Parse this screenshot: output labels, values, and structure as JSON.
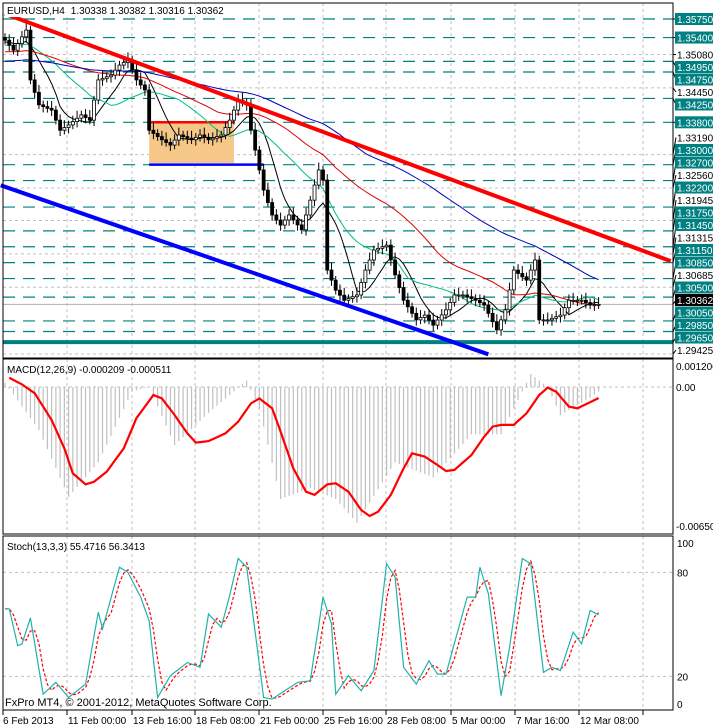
{
  "header": {
    "symbol": "EURUSD,H4",
    "ohlc": "1.30338 1.30382 1.30316 1.30362"
  },
  "footer": {
    "copyright": "FxPro MT4, © 2001-2012, MetaQuotes Software Corp."
  },
  "colors": {
    "level": "#008080",
    "trend_down": "#ff0000",
    "channel": "#0000ff",
    "range_box": "#f5c88a",
    "candle": "#000000",
    "grid": "#c0c0c0"
  },
  "chart_data": [
    {
      "type": "candlestick",
      "title": "EURUSD,H4",
      "x_ticks": [
        "6 Feb 2013",
        "11 Feb 00:00",
        "13 Feb 16:00",
        "18 Feb 08:00",
        "21 Feb 00:00",
        "25 Feb 16:00",
        "28 Feb 08:00",
        "5 Mar 00:00",
        "7 Mar 16:00",
        "12 Mar 08:00"
      ],
      "ylim": [
        1.29425,
        1.3575
      ],
      "y_ticks": [
        "1.35080",
        "1.34450",
        "1.33190",
        "1.32560",
        "1.31945",
        "1.31315",
        "1.30685",
        "1.29425"
      ],
      "levels": [
        "1.35750",
        "1.35400",
        "1.34950",
        "1.34750",
        "1.34250",
        "1.33800",
        "1.33000",
        "1.32700",
        "1.32200",
        "1.31750",
        "1.31450",
        "1.31150",
        "1.30850",
        "1.30500",
        "1.30050",
        "1.29850",
        "1.29650"
      ],
      "strong_level": "1.29650",
      "current_price": "1.30362",
      "close_by_bar": [
        [
          0,
          1.3535
        ],
        [
          2,
          1.3516
        ],
        [
          5,
          1.3554
        ],
        [
          6,
          1.346
        ],
        [
          8,
          1.3413
        ],
        [
          11,
          1.3403
        ],
        [
          13,
          1.3365
        ],
        [
          15,
          1.3375
        ],
        [
          18,
          1.3394
        ],
        [
          20,
          1.3384
        ],
        [
          22,
          1.346
        ],
        [
          25,
          1.3469
        ],
        [
          27,
          1.3488
        ],
        [
          29,
          1.3498
        ],
        [
          31,
          1.346
        ],
        [
          33,
          1.3441
        ],
        [
          34,
          1.3365
        ],
        [
          37,
          1.3347
        ],
        [
          39,
          1.3337
        ],
        [
          41,
          1.3356
        ],
        [
          44,
          1.3347
        ],
        [
          46,
          1.3356
        ],
        [
          48,
          1.3347
        ],
        [
          51,
          1.3356
        ],
        [
          53,
          1.3384
        ],
        [
          55,
          1.3422
        ],
        [
          57,
          1.3413
        ],
        [
          58,
          1.3365
        ],
        [
          60,
          1.329
        ],
        [
          61,
          1.3252
        ],
        [
          63,
          1.3205
        ],
        [
          65,
          1.3186
        ],
        [
          67,
          1.3205
        ],
        [
          70,
          1.3177
        ],
        [
          72,
          1.3233
        ],
        [
          74,
          1.329
        ],
        [
          75,
          1.3271
        ],
        [
          76,
          1.3101
        ],
        [
          78,
          1.3063
        ],
        [
          80,
          1.3044
        ],
        [
          83,
          1.3054
        ],
        [
          85,
          1.3101
        ],
        [
          87,
          1.3139
        ],
        [
          90,
          1.3148
        ],
        [
          92,
          1.3092
        ],
        [
          94,
          1.3044
        ],
        [
          97,
          1.3007
        ],
        [
          99,
          1.3016
        ],
        [
          101,
          1.2997
        ],
        [
          104,
          1.3026
        ],
        [
          106,
          1.3054
        ],
        [
          108,
          1.3054
        ],
        [
          111,
          1.3044
        ],
        [
          113,
          1.3035
        ],
        [
          116,
          1.2988
        ],
        [
          118,
          1.3026
        ],
        [
          120,
          1.3101
        ],
        [
          123,
          1.3082
        ],
        [
          125,
          1.312
        ],
        [
          126,
          1.3007
        ],
        [
          128,
          1.3007
        ],
        [
          131,
          1.3016
        ],
        [
          133,
          1.3044
        ],
        [
          136,
          1.3044
        ],
        [
          138,
          1.3035
        ],
        [
          140,
          1.30362
        ]
      ],
      "trendlines": [
        {
          "color": "red",
          "from": [
            0,
            1.3585
          ],
          "to": [
            157,
            1.3118
          ]
        },
        {
          "color": "blue",
          "from": [
            -1,
            1.3261
          ],
          "to": [
            114,
            1.2942
          ]
        }
      ],
      "range_box": {
        "from_bar": 34,
        "to_bar": 54,
        "top": 1.338,
        "bottom": 1.3303
      },
      "range_lines": [
        {
          "color": "red",
          "from_bar": 34,
          "to_bar": 54,
          "price": 1.338
        },
        {
          "color": "blue",
          "from_bar": 34,
          "to_bar": 61,
          "price": 1.33
        }
      ],
      "moving_averages": [
        {
          "color": "#000000",
          "period": 8
        },
        {
          "color": "#00c080",
          "period": 20
        },
        {
          "color": "#e00000",
          "period": 45
        },
        {
          "color": "#0000c0",
          "period": 80
        }
      ]
    },
    {
      "type": "bar+line",
      "title": "MACD(12,26,9) -0.000209 -0.000511",
      "ylim": [
        -0.0065,
        0.001206
      ],
      "y_ticks": [
        "0.001206",
        "0.00",
        "-0.00650"
      ],
      "histogram_by_bar": [
        [
          0,
          0.0002
        ],
        [
          8,
          -0.002
        ],
        [
          15,
          -0.0051
        ],
        [
          22,
          -0.0035
        ],
        [
          30,
          -0.0002
        ],
        [
          34,
          0.0
        ],
        [
          40,
          -0.0027
        ],
        [
          48,
          -0.0012
        ],
        [
          57,
          0.0003
        ],
        [
          60,
          -0.001
        ],
        [
          65,
          -0.0052
        ],
        [
          72,
          -0.0047
        ],
        [
          78,
          -0.0052
        ],
        [
          83,
          -0.0063
        ],
        [
          92,
          -0.0035
        ],
        [
          101,
          -0.0042
        ],
        [
          110,
          -0.0022
        ],
        [
          117,
          -0.0022
        ],
        [
          124,
          0.0006
        ],
        [
          128,
          0.0
        ],
        [
          131,
          -0.0013
        ],
        [
          138,
          -0.0005
        ],
        [
          140,
          -0.000209
        ]
      ],
      "signal_by_bar": [
        [
          1,
          0.00043
        ],
        [
          4,
          0.00012
        ],
        [
          7,
          -0.00029
        ],
        [
          11,
          -0.00153
        ],
        [
          14,
          -0.00285
        ],
        [
          16,
          -0.00401
        ],
        [
          19,
          -0.00452
        ],
        [
          21,
          -0.0044
        ],
        [
          24,
          -0.00393
        ],
        [
          28,
          -0.00285
        ],
        [
          31,
          -0.00145
        ],
        [
          35,
          -0.00037
        ],
        [
          37,
          -0.00053
        ],
        [
          40,
          -0.0013
        ],
        [
          43,
          -0.00215
        ],
        [
          45,
          -0.00258
        ],
        [
          48,
          -0.00251
        ],
        [
          52,
          -0.00215
        ],
        [
          55,
          -0.00161
        ],
        [
          58,
          -0.00076
        ],
        [
          60,
          -0.00053
        ],
        [
          63,
          -0.00099
        ],
        [
          65,
          -0.00207
        ],
        [
          68,
          -0.00378
        ],
        [
          71,
          -0.00486
        ],
        [
          73,
          -0.00501
        ],
        [
          76,
          -0.00452
        ],
        [
          78,
          -0.00447
        ],
        [
          81,
          -0.00486
        ],
        [
          84,
          -0.00571
        ],
        [
          86,
          -0.00599
        ],
        [
          88,
          -0.00579
        ],
        [
          91,
          -0.00501
        ],
        [
          94,
          -0.00378
        ],
        [
          96,
          -0.00308
        ],
        [
          99,
          -0.00323
        ],
        [
          102,
          -0.00362
        ],
        [
          104,
          -0.0039
        ],
        [
          106,
          -0.00385
        ],
        [
          110,
          -0.00316
        ],
        [
          113,
          -0.00231
        ],
        [
          115,
          -0.00184
        ],
        [
          117,
          -0.00176
        ],
        [
          120,
          -0.00176
        ],
        [
          123,
          -0.00122
        ],
        [
          126,
          -0.00037
        ],
        [
          128,
          -3e-05
        ],
        [
          130,
          -0.00022
        ],
        [
          133,
          -0.00091
        ],
        [
          135,
          -0.00099
        ],
        [
          137,
          -0.0008
        ],
        [
          140,
          -0.000511
        ]
      ]
    },
    {
      "type": "line",
      "title": "Stoch(13,3,3) 55.4716 56.3413",
      "ylim": [
        0,
        100
      ],
      "y_ticks": [
        "100",
        "80",
        "20",
        "0"
      ],
      "main_by_bar": [
        [
          1,
          59
        ],
        [
          3,
          37.7
        ],
        [
          4,
          38.7
        ],
        [
          6,
          53.7
        ],
        [
          9,
          9.7
        ],
        [
          12,
          16.5
        ],
        [
          15,
          7.8
        ],
        [
          19,
          15.5
        ],
        [
          22,
          57
        ],
        [
          23,
          47.4
        ],
        [
          27,
          83
        ],
        [
          29,
          80
        ],
        [
          32,
          65.7
        ],
        [
          34,
          52
        ],
        [
          36,
          7.8
        ],
        [
          39,
          20.4
        ],
        [
          43,
          28
        ],
        [
          46,
          25.2
        ],
        [
          48,
          56
        ],
        [
          51,
          48.3
        ],
        [
          53,
          66.7
        ],
        [
          55,
          88
        ],
        [
          57,
          83
        ],
        [
          61,
          7.8
        ],
        [
          63,
          6.9
        ],
        [
          66,
          11.7
        ],
        [
          69,
          16.5
        ],
        [
          72,
          17.5
        ],
        [
          75,
          65.7
        ],
        [
          77,
          50.3
        ],
        [
          78,
          9.7
        ],
        [
          81,
          20.4
        ],
        [
          84,
          11.7
        ],
        [
          87,
          23.3
        ],
        [
          90,
          85
        ],
        [
          92,
          77.3
        ],
        [
          94,
          25.2
        ],
        [
          97,
          15.5
        ],
        [
          100,
          29
        ],
        [
          102,
          21.3
        ],
        [
          104,
          21.3
        ],
        [
          109,
          65.7
        ],
        [
          111,
          65.7
        ],
        [
          112,
          83
        ],
        [
          114,
          67.6
        ],
        [
          117,
          8.8
        ],
        [
          119,
          36.8
        ],
        [
          122,
          88
        ],
        [
          124,
          85
        ],
        [
          127,
          22.3
        ],
        [
          129,
          25.2
        ],
        [
          131,
          23.3
        ],
        [
          134,
          45.5
        ],
        [
          136,
          38.7
        ],
        [
          138,
          58
        ],
        [
          140,
          55.4716
        ]
      ],
      "signal_last": 56.3413
    }
  ]
}
